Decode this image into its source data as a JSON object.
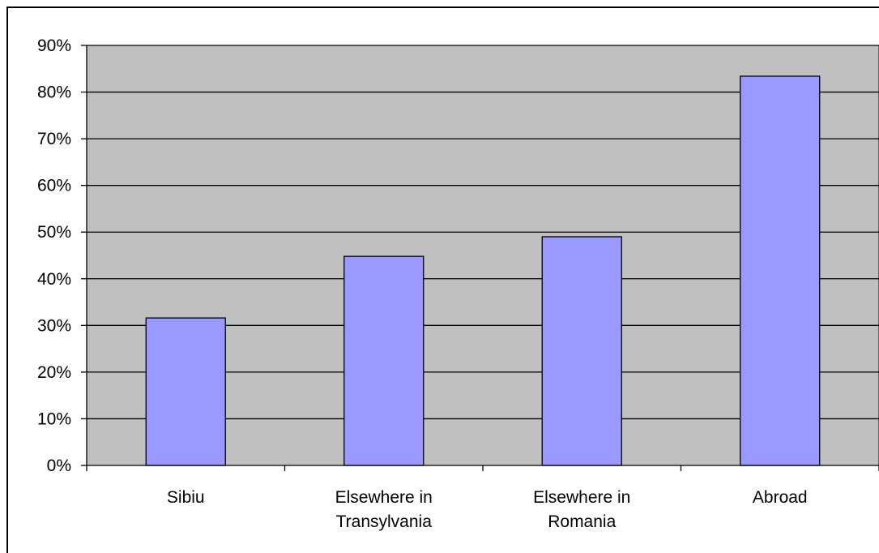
{
  "chart_data": {
    "type": "bar",
    "categories": [
      [
        "Sibiu"
      ],
      [
        "Elsewhere in",
        "Transylvania"
      ],
      [
        "Elsewhere in",
        "Romania"
      ],
      [
        "Abroad"
      ]
    ],
    "values": [
      31.6,
      44.8,
      49.0,
      83.4
    ],
    "y_ticks": [
      "0%",
      "10%",
      "20%",
      "30%",
      "40%",
      "50%",
      "60%",
      "70%",
      "80%",
      "90%"
    ],
    "ylim": [
      0,
      90
    ],
    "title": "",
    "xlabel": "",
    "ylabel": "",
    "grid": true,
    "legend": "none",
    "colors": {
      "plot_background": "#C0C0C0",
      "bar_fill": "#9999FF",
      "bar_stroke": "#000000",
      "gridline": "#000000"
    }
  }
}
